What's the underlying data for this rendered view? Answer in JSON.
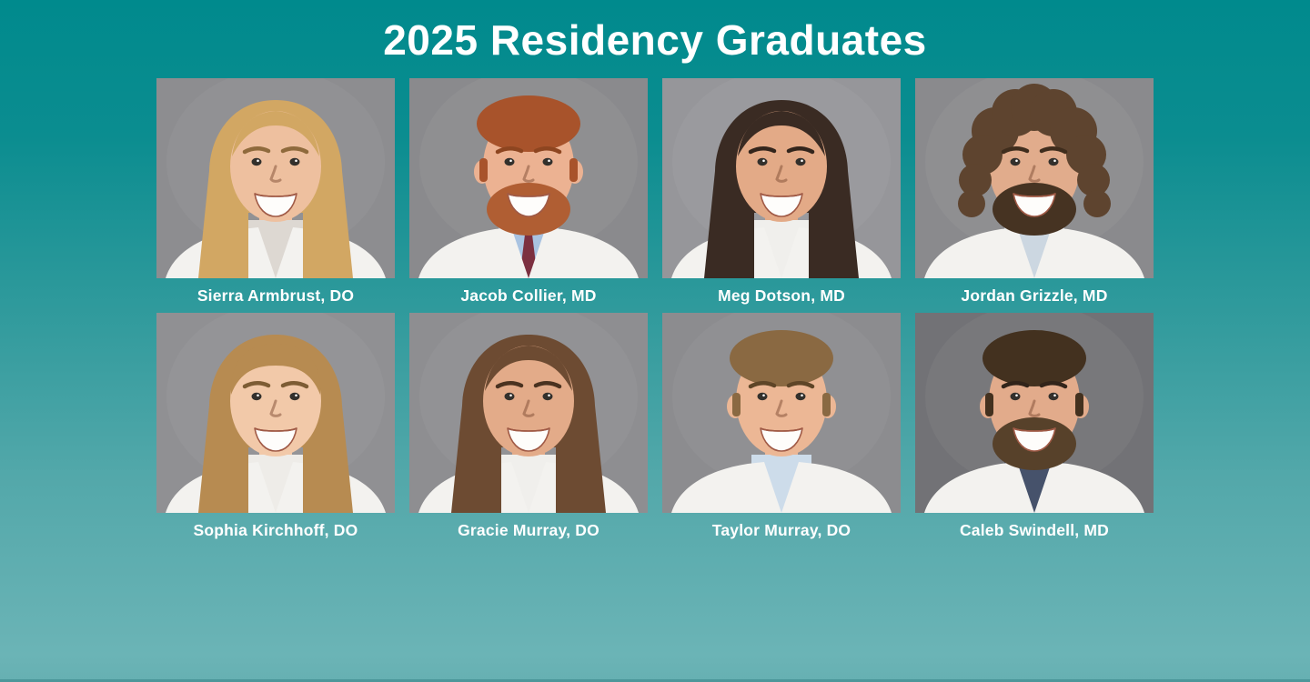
{
  "page": {
    "title": "2025 Residency Graduates"
  },
  "theme": {
    "background_top": "#008a8d",
    "background_bottom": "#6ab4b6",
    "title_color": "#ffffff",
    "caption_color": "#ffffff",
    "photo_background_gray": "#8c8c8f"
  },
  "graduates": [
    {
      "name": "Sierra Armbrust, DO",
      "portrait": {
        "description": "smiling woman with long wavy blonde hair wearing a white coat, gray studio background",
        "style": "long",
        "bg": "#8d8d90",
        "skin": "#eec09f",
        "hair": "#d2a763",
        "brow": "#8f6a3c",
        "shirt": "#ddd8d2",
        "coat": "#f3f2ef"
      }
    },
    {
      "name": "Jacob Collier, MD",
      "portrait": {
        "description": "smiling man with short red hair and red beard, white coat, light blue shirt and dark red tie, gray studio background",
        "style": "short",
        "bg": "#8a8a8d",
        "skin": "#ecb292",
        "hair": "#a8532b",
        "brow": "#8d4520",
        "beard": "#b05e33",
        "shirt": "#a9c3e1",
        "tie": "#7c3040",
        "coat": "#f3f2ef"
      }
    },
    {
      "name": "Meg Dotson, MD",
      "portrait": {
        "description": "smiling woman with long straight dark brown hair parted in the middle, white coat, gray studio background",
        "style": "long",
        "bg": "#96969a",
        "skin": "#e3aa87",
        "hair": "#3a2b23",
        "brow": "#33251c",
        "shirt": "#f0efec",
        "coat": "#f3f2ef"
      }
    },
    {
      "name": "Jordan Grizzle, MD",
      "portrait": {
        "description": "smiling man with voluminous curly brown hair and full dark beard, striped shirt under white coat, gray studio background",
        "style": "curly",
        "bg": "#8a8a8d",
        "skin": "#e1ac8c",
        "hair": "#5e442f",
        "brow": "#3f2d1d",
        "beard": "#463322",
        "shirt": "#ccd7e1",
        "coat": "#f3f2ef"
      }
    },
    {
      "name": "Sophia Kirchhoff, DO",
      "portrait": {
        "description": "smiling woman with straight light brown hair and bangs, white coat, gray studio background",
        "style": "bangs",
        "bg": "#909093",
        "skin": "#f2c9a9",
        "hair": "#b78b51",
        "brow": "#7d5c34",
        "shirt": "#eeece8",
        "coat": "#f3f2ef"
      }
    },
    {
      "name": "Gracie Murray, DO",
      "portrait": {
        "description": "smiling woman with long wavy brown hair, white top, gray studio background",
        "style": "long",
        "bg": "#8e8e91",
        "skin": "#e3ab89",
        "hair": "#6d4b32",
        "brow": "#4a3220",
        "shirt": "#f0efec",
        "coat": "#f3f2ef"
      }
    },
    {
      "name": "Taylor Murray, DO",
      "portrait": {
        "description": "smiling clean-shaven man with short light brown hair, light blue striped shirt under white coat, gray studio background",
        "style": "short",
        "bg": "#8c8c8f",
        "skin": "#ecb795",
        "hair": "#8a6942",
        "brow": "#5e4527",
        "shirt": "#cddcea",
        "coat": "#f3f2ef"
      }
    },
    {
      "name": "Caleb Swindell, MD",
      "portrait": {
        "description": "smiling man with short dark brown hair and brown beard, navy checkered shirt under white coat, dark gray studio background",
        "style": "short",
        "bg": "#727276",
        "skin": "#e2ab8b",
        "hair": "#43311f",
        "brow": "#32241a",
        "beard": "#57412a",
        "shirt": "#46526b",
        "coat": "#f3f2ef"
      }
    }
  ]
}
